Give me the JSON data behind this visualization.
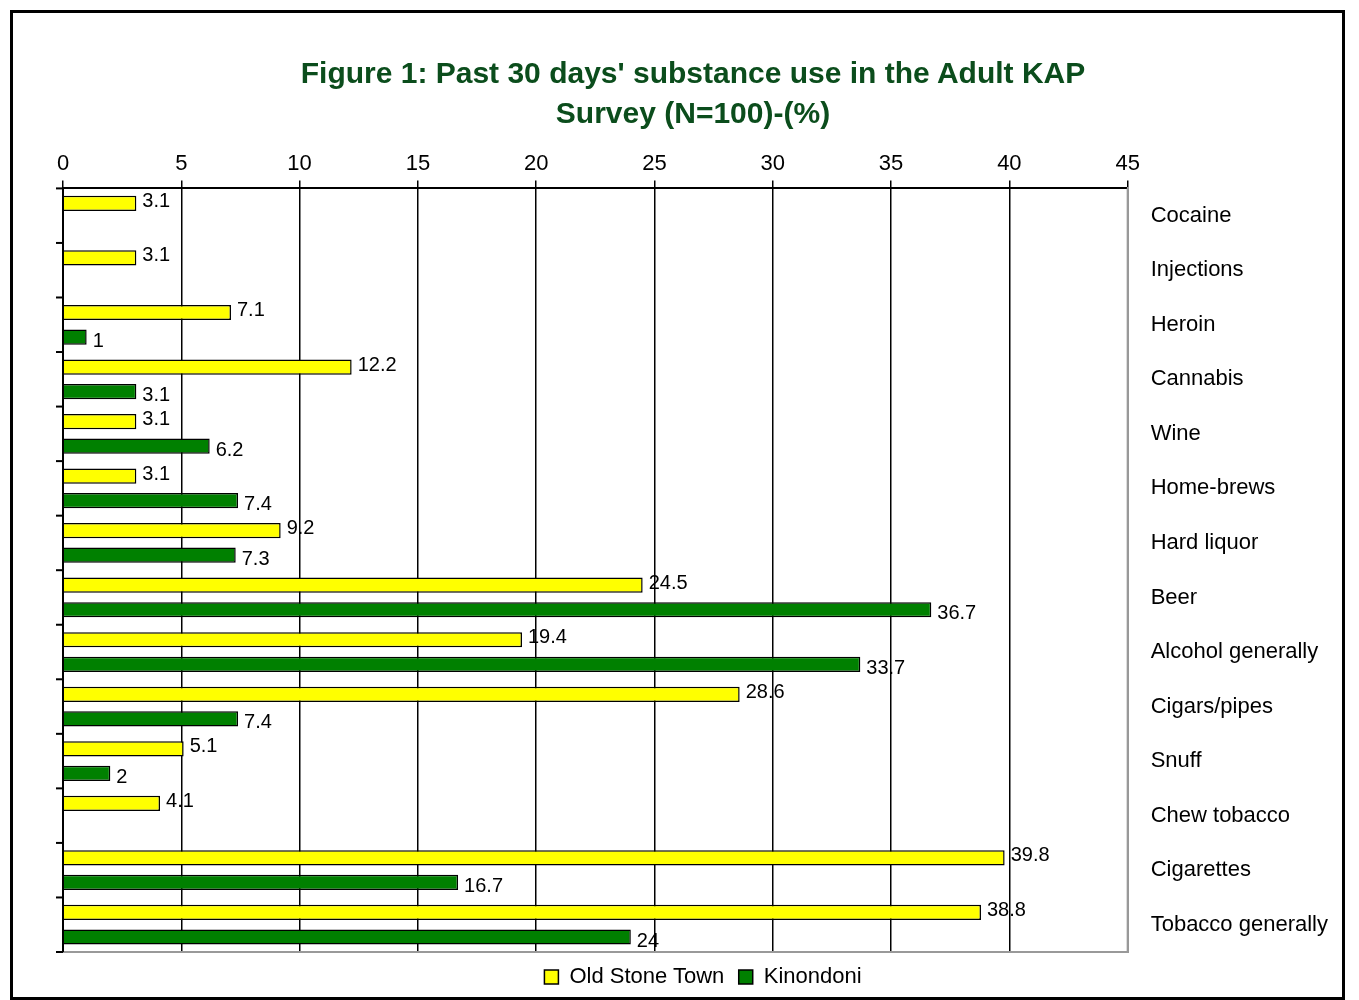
{
  "chart_data": {
    "type": "bar",
    "orientation": "horizontal",
    "title": "Figure 1: Past 30 days' substance use in the Adult KAP Survey (N=100)-(%)",
    "categories": [
      "Cocaine",
      "Injections",
      "Heroin",
      "Cannabis",
      "Wine",
      "Home-brews",
      "Hard liquor",
      "Beer",
      "Alcohol generally",
      "Cigars/pipes",
      "Snuff",
      "Chew tobacco",
      "Cigarettes",
      "Tobacco generally"
    ],
    "series": [
      {
        "name": "Old Stone Town",
        "color": "#ffff00",
        "values": [
          3.1,
          3.1,
          7.1,
          12.2,
          3.1,
          3.1,
          9.2,
          24.5,
          19.4,
          28.6,
          5.1,
          4.1,
          39.8,
          38.8
        ]
      },
      {
        "name": "Kinondoni",
        "color": "#008000",
        "values": [
          null,
          null,
          1,
          3.1,
          6.2,
          7.4,
          7.3,
          36.7,
          33.7,
          7.4,
          2,
          null,
          16.7,
          24
        ]
      }
    ],
    "xlim": [
      0,
      45
    ],
    "xticks": [
      0,
      5,
      10,
      15,
      20,
      25,
      30,
      35,
      40,
      45
    ],
    "grid": "x",
    "legend": "bottom",
    "data_labels": true
  }
}
